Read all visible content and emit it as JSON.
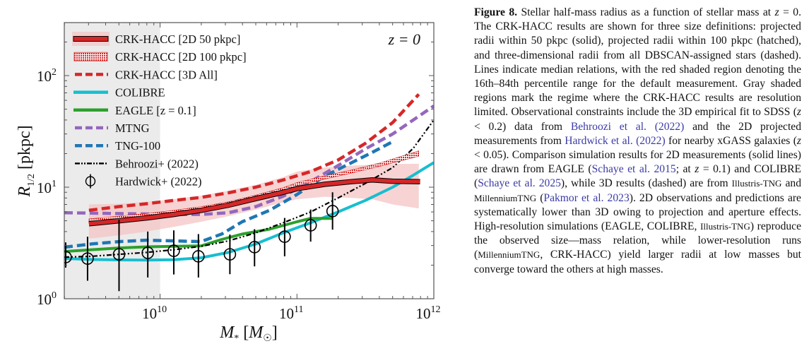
{
  "chart_data": {
    "type": "line",
    "title": "",
    "annotation": "z = 0",
    "xlabel": "M* [M☉]",
    "ylabel": "R1/2 [pkpc]",
    "xscale": "log",
    "yscale": "log",
    "xlim_log10": [
      9.3,
      12.0
    ],
    "ylim_log10": [
      0.0,
      2.475
    ],
    "xticks": [
      {
        "value_log10": 10,
        "label": "10",
        "exp": "10"
      },
      {
        "value_log10": 11,
        "label": "10",
        "exp": "11"
      },
      {
        "value_log10": 12,
        "label": "10",
        "exp": "12"
      }
    ],
    "yticks": [
      {
        "value_log10": 0,
        "label": "10",
        "exp": "0"
      },
      {
        "value_log10": 1,
        "label": "10",
        "exp": "1"
      },
      {
        "value_log10": 2,
        "label": "10",
        "exp": "2"
      }
    ],
    "grid": false,
    "legend_placement": "top-left",
    "resolution_limited_region_log10M": [
      9.3,
      10.0
    ],
    "colors": {
      "crk": "#d62728",
      "band": "#f4c4c4",
      "colibre": "#17becf",
      "eagle": "#2ca02c",
      "mtng": "#9467bd",
      "tng": "#1f77b4",
      "behroozi": "#000000",
      "hardwick": "#000000",
      "gray_region": "#ebebeb"
    },
    "legend": [
      {
        "key": "crk2d50",
        "label": "CRK-HACC [2D 50 pkpc]"
      },
      {
        "key": "crk2d100",
        "label": "CRK-HACC [2D 100 pkpc]"
      },
      {
        "key": "crk3d",
        "label": "CRK-HACC [3D All]"
      },
      {
        "key": "colibre",
        "label": "COLIBRE"
      },
      {
        "key": "eagle",
        "label": "EAGLE [z = 0.1]"
      },
      {
        "key": "mtng",
        "label": "MTNG"
      },
      {
        "key": "tng",
        "label": "TNG-100"
      },
      {
        "key": "behroozi",
        "label": "Behroozi+ (2022)"
      },
      {
        "key": "hardwick",
        "label": "Hardwick+ (2022)"
      }
    ],
    "series": [
      {
        "key": "crk2d50",
        "name": "CRK-HACC [2D 50 pkpc]",
        "style": "solid-thick-outlined",
        "log10M": [
          9.48,
          9.7,
          9.9,
          10.1,
          10.3,
          10.5,
          10.7,
          10.9,
          11.0,
          11.2,
          11.4,
          11.55,
          11.7,
          11.9
        ],
        "R": [
          4.7,
          5.0,
          5.3,
          5.7,
          6.2,
          6.9,
          7.9,
          9.0,
          9.7,
          10.6,
          11.2,
          11.6,
          11.3,
          11.2
        ]
      },
      {
        "key": "crk2d100",
        "name": "CRK-HACC [2D 100 pkpc]",
        "style": "hatched-band",
        "log10M": [
          9.48,
          9.7,
          9.9,
          10.1,
          10.3,
          10.5,
          10.7,
          10.9,
          11.0,
          11.2,
          11.4,
          11.6,
          11.89
        ],
        "R_low": [
          4.8,
          5.1,
          5.4,
          5.8,
          6.3,
          7.0,
          8.0,
          9.3,
          10.3,
          11.8,
          13.4,
          15.3,
          18.9
        ],
        "R_high": [
          5.2,
          5.5,
          5.8,
          6.2,
          6.7,
          7.4,
          8.5,
          9.9,
          11.0,
          12.6,
          14.3,
          16.4,
          21.2
        ]
      },
      {
        "key": "crk3d",
        "name": "CRK-HACC [3D All]",
        "style": "dashed",
        "log10M": [
          9.48,
          9.7,
          9.9,
          10.1,
          10.3,
          10.5,
          10.7,
          10.9,
          11.1,
          11.3,
          11.5,
          11.7,
          11.89
        ],
        "R": [
          6.2,
          6.7,
          7.1,
          7.6,
          8.1,
          8.9,
          10.0,
          11.6,
          13.8,
          17.5,
          24.7,
          38.0,
          68.0
        ]
      },
      {
        "key": "band",
        "name": "CRK-HACC 16th-84th percentile",
        "style": "shaded-band",
        "log10M": [
          9.48,
          9.7,
          9.9,
          10.1,
          10.3,
          10.5,
          10.7,
          10.9,
          11.0,
          11.2,
          11.4,
          11.55,
          11.7,
          11.89
        ],
        "R_low": [
          3.45,
          3.7,
          4.0,
          4.4,
          4.9,
          5.5,
          6.3,
          7.3,
          7.8,
          8.2,
          8.0,
          7.8,
          7.0,
          6.45
        ],
        "R_high": [
          7.0,
          7.1,
          7.4,
          7.8,
          8.4,
          9.3,
          10.5,
          12.3,
          13.8,
          15.0,
          15.6,
          15.9,
          16.1,
          16.2
        ]
      },
      {
        "key": "colibre",
        "name": "COLIBRE",
        "style": "solid",
        "log10M": [
          9.3,
          9.5,
          9.7,
          9.9,
          10.1,
          10.3,
          10.5,
          10.7,
          10.9,
          11.1,
          11.3,
          11.5,
          11.7,
          11.85,
          12.0
        ],
        "R": [
          2.3,
          2.25,
          2.23,
          2.22,
          2.24,
          2.33,
          2.6,
          3.1,
          3.9,
          4.8,
          6.0,
          7.6,
          10.0,
          12.8,
          16.6
        ]
      },
      {
        "key": "eagle",
        "name": "EAGLE [z = 0.1]",
        "style": "solid",
        "log10M": [
          9.3,
          9.5,
          9.7,
          9.9,
          10.1,
          10.3,
          10.45,
          10.6,
          10.8,
          11.0,
          11.1,
          11.26
        ],
        "R": [
          2.65,
          2.75,
          2.85,
          2.92,
          2.95,
          2.98,
          3.4,
          3.8,
          4.2,
          4.9,
          5.25,
          5.25
        ]
      },
      {
        "key": "mtng",
        "name": "MTNG",
        "style": "dashed",
        "log10M": [
          9.3,
          9.5,
          9.7,
          9.9,
          10.1,
          10.3,
          10.5,
          10.7,
          10.9,
          11.1,
          11.3,
          11.5,
          11.7,
          12.0
        ],
        "R": [
          5.9,
          5.85,
          5.8,
          5.75,
          5.7,
          5.7,
          5.9,
          6.7,
          8.3,
          11.2,
          15.6,
          22.0,
          30.0,
          53.5
        ]
      },
      {
        "key": "tng",
        "name": "TNG-100",
        "style": "dashed",
        "log10M": [
          9.3,
          9.5,
          9.7,
          9.9,
          10.1,
          10.3,
          10.45,
          10.6,
          10.8,
          11.0,
          11.2,
          11.4,
          11.55,
          11.71
        ],
        "R": [
          2.9,
          3.1,
          3.25,
          3.35,
          3.3,
          3.25,
          3.8,
          4.9,
          6.2,
          8.6,
          12.5,
          16.6,
          20.5,
          26.0
        ]
      },
      {
        "key": "behroozi",
        "name": "Behroozi+ (2022)",
        "style": "dash-dot-dot",
        "log10M": [
          9.3,
          9.5,
          9.7,
          9.9,
          10.1,
          10.3,
          10.5,
          10.7,
          10.9,
          11.1,
          11.3,
          11.5,
          11.7,
          11.85,
          12.0
        ],
        "R": [
          2.36,
          2.4,
          2.5,
          2.6,
          2.75,
          2.95,
          3.3,
          3.9,
          4.8,
          6.0,
          8.0,
          10.8,
          15.0,
          22.3,
          40.0
        ]
      },
      {
        "key": "hardwick",
        "name": "Hardwick+ (2022)",
        "style": "points-errorbars",
        "log10M": [
          9.31,
          9.47,
          9.7,
          9.91,
          10.1,
          10.28,
          10.51,
          10.69,
          10.91,
          11.1,
          11.26
        ],
        "R": [
          2.36,
          2.29,
          2.5,
          2.58,
          2.69,
          2.4,
          2.5,
          2.9,
          3.6,
          4.55,
          6.1
        ],
        "R_err_low": [
          1.9,
          1.45,
          1.17,
          1.55,
          1.65,
          1.55,
          1.66,
          1.95,
          2.4,
          3.25,
          4.16
        ],
        "R_err_high": [
          3.2,
          3.6,
          5.1,
          4.0,
          4.1,
          3.8,
          3.76,
          4.2,
          5.3,
          6.3,
          9.0
        ]
      }
    ]
  },
  "caption": {
    "label": "Figure 8.",
    "segments": [
      {
        "t": " Stellar half-mass radius as a function of stellar mass at ",
        "c": ""
      },
      {
        "t": "z",
        "c": "it"
      },
      {
        "t": " = 0. The ",
        "c": ""
      },
      {
        "t": "CRK-HACC",
        "c": "sc"
      },
      {
        "t": " results are shown for three size definitions: projected radii within 50 pkpc (solid), projected radii within 100 pkpc (hatched), and three-dimensional radii from all DBSCAN-assigned stars (dashed). Lines indicate median relations, with the red shaded region denoting the 16th–84th percentile range for the default measurement. Gray shaded regions mark the regime where the ",
        "c": ""
      },
      {
        "t": "CRK-HACC",
        "c": "sc"
      },
      {
        "t": " results are resolution limited. Observational constraints include the 3D empirical fit to SDSS (",
        "c": ""
      },
      {
        "t": "z",
        "c": "it"
      },
      {
        "t": " < 0.2) data from ",
        "c": ""
      },
      {
        "t": "Behroozi et al. (2022)",
        "c": "ref"
      },
      {
        "t": " and the 2D projected measurements from ",
        "c": ""
      },
      {
        "t": "Hardwick et al. (2022)",
        "c": "ref"
      },
      {
        "t": " for nearby xGASS galaxies (",
        "c": ""
      },
      {
        "t": "z",
        "c": "it"
      },
      {
        "t": " < 0.05). Comparison simulation results for 2D measurements (solid lines) are drawn from ",
        "c": ""
      },
      {
        "t": "EAGLE",
        "c": "sc"
      },
      {
        "t": " (",
        "c": ""
      },
      {
        "t": "Schaye et al. 2015",
        "c": "ref"
      },
      {
        "t": "; at ",
        "c": ""
      },
      {
        "t": "z",
        "c": "it"
      },
      {
        "t": " = 0.1) and ",
        "c": ""
      },
      {
        "t": "COLIBRE",
        "c": "sc"
      },
      {
        "t": " (",
        "c": ""
      },
      {
        "t": "Schaye et al. 2025",
        "c": "ref"
      },
      {
        "t": "), while 3D results (dashed) are from ",
        "c": ""
      },
      {
        "t": "Illustris-TNG",
        "c": "small"
      },
      {
        "t": " and ",
        "c": ""
      },
      {
        "t": "MillenniumTNG",
        "c": "small"
      },
      {
        "t": " (",
        "c": ""
      },
      {
        "t": "Pakmor et al. 2023",
        "c": "ref"
      },
      {
        "t": "). 2D observations and predictions are systematically lower than 3D owing to projection and aperture effects. High-resolution simulations (",
        "c": ""
      },
      {
        "t": "EAGLE",
        "c": "sc"
      },
      {
        "t": ", ",
        "c": ""
      },
      {
        "t": "COLIBRE",
        "c": "sc"
      },
      {
        "t": ", ",
        "c": ""
      },
      {
        "t": "Illustris-TNG",
        "c": "small"
      },
      {
        "t": ") reproduce the observed size—mass relation, while lower-resolution runs (",
        "c": ""
      },
      {
        "t": "MillenniumTNG",
        "c": "small"
      },
      {
        "t": ", ",
        "c": ""
      },
      {
        "t": "CRK-HACC",
        "c": "sc"
      },
      {
        "t": ") yield larger radii at low masses but converge toward the others at high masses.",
        "c": ""
      }
    ]
  }
}
